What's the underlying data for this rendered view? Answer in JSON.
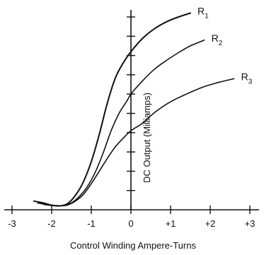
{
  "chart_data": {
    "type": "line",
    "title": "",
    "xlabel": "Control Winding Ampere-Turns",
    "ylabel": "DC Output (Milliamps)",
    "xlim": [
      -3,
      3
    ],
    "ylim": [
      0,
      10.5
    ],
    "x_ticks": [
      -3,
      -2,
      -1,
      0,
      1,
      2,
      3
    ],
    "x_tick_labels": [
      "-3",
      "-2",
      "-1",
      "0",
      "+1",
      "+2",
      "+3"
    ],
    "y_ticks": [
      0,
      1,
      2,
      3,
      4,
      5,
      6,
      7,
      8,
      9,
      10
    ],
    "grid": false,
    "series": [
      {
        "name": "R1",
        "label_main": "R",
        "label_sub": "1",
        "x": [
          -2.45,
          -2.2,
          -2.0,
          -1.8,
          -1.6,
          -1.4,
          -1.2,
          -1.0,
          -0.8,
          -0.6,
          -0.4,
          -0.2,
          0.0,
          0.3,
          0.6,
          0.9,
          1.2,
          1.5
        ],
        "y": [
          0.45,
          0.35,
          0.24,
          0.2,
          0.32,
          0.75,
          1.45,
          2.5,
          3.9,
          5.5,
          6.8,
          7.6,
          8.2,
          8.9,
          9.4,
          9.75,
          10.0,
          10.2
        ]
      },
      {
        "name": "R2",
        "label_main": "R",
        "label_sub": "2",
        "x": [
          -2.35,
          -2.1,
          -1.9,
          -1.7,
          -1.5,
          -1.3,
          -1.1,
          -0.9,
          -0.7,
          -0.5,
          -0.3,
          -0.1,
          0.0,
          0.3,
          0.6,
          0.9,
          1.2,
          1.5,
          1.85
        ],
        "y": [
          0.35,
          0.27,
          0.22,
          0.22,
          0.36,
          0.7,
          1.2,
          1.95,
          2.95,
          4.1,
          5.0,
          5.65,
          6.0,
          6.7,
          7.3,
          7.75,
          8.15,
          8.5,
          8.8
        ]
      },
      {
        "name": "R3",
        "label_main": "R",
        "label_sub": "3",
        "x": [
          -2.2,
          -2.0,
          -1.8,
          -1.6,
          -1.4,
          -1.2,
          -1.0,
          -0.8,
          -0.6,
          -0.4,
          -0.2,
          0.0,
          0.3,
          0.6,
          1.0,
          1.4,
          1.8,
          2.2,
          2.6
        ],
        "y": [
          0.28,
          0.22,
          0.2,
          0.25,
          0.45,
          0.8,
          1.35,
          2.0,
          2.65,
          3.25,
          3.7,
          4.1,
          4.5,
          5.05,
          5.6,
          6.0,
          6.35,
          6.6,
          6.8
        ]
      }
    ]
  }
}
